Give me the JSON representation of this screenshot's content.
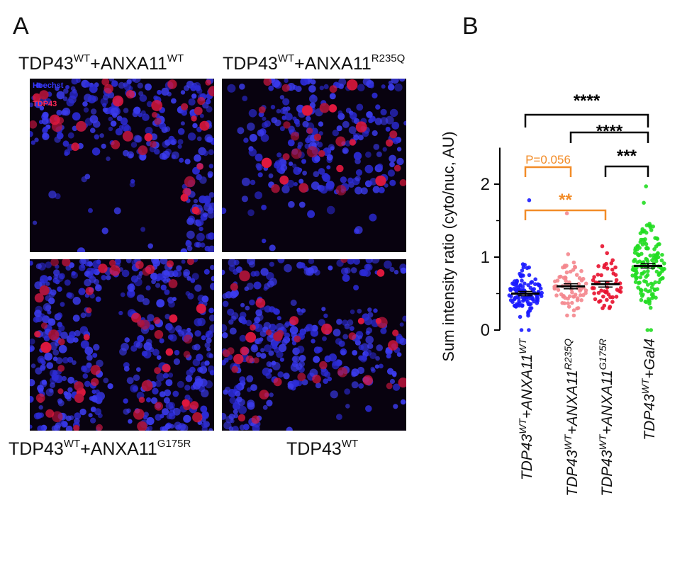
{
  "panel_a": {
    "letter": "A",
    "legend": {
      "hoechst": "Hoechst",
      "tdp43": "TDP43",
      "hoechst_color": "#2a2cff",
      "tdp43_color": "#ff1f4a"
    },
    "captions": [
      {
        "base": "TDP43",
        "sup1": "WT",
        "mid": "+ANXA11",
        "sup2": "WT"
      },
      {
        "base": "TDP43",
        "sup1": "WT",
        "mid": "+ANXA11",
        "sup2": "R235Q"
      },
      {
        "base": "TDP43",
        "sup1": "WT",
        "mid": "+ANXA11",
        "sup2": "G175R"
      },
      {
        "base": "TDP43",
        "sup1": "WT",
        "mid": "",
        "sup2": ""
      }
    ]
  },
  "panel_b": {
    "letter": "B"
  },
  "chart_data": {
    "type": "scatter",
    "ylabel": "Sum intensity ratio (cyto/nuc, AU)",
    "ylim": [
      0,
      2.5
    ],
    "yticks": [
      0,
      1,
      2
    ],
    "groups": [
      {
        "label_base": "TDP43",
        "label_sup1": "WT",
        "label_mid": "+ANXA11",
        "label_sup2": "WT",
        "mean": 0.5,
        "sem": 0.03,
        "color": "#1a1aff",
        "n": 120,
        "max": 1.78,
        "min": 0.0
      },
      {
        "label_base": "TDP43",
        "label_sup1": "WT",
        "label_mid": "+ANXA11",
        "label_sup2": "R235Q",
        "mean": 0.6,
        "sem": 0.035,
        "color": "#f4868d",
        "n": 70,
        "max": 1.6,
        "min": 0.2
      },
      {
        "label_base": "TDP43",
        "label_sup1": "WT",
        "label_mid": "+ANXA11",
        "label_sup2": "G175R",
        "mean": 0.63,
        "sem": 0.04,
        "color": "#e8112d",
        "n": 50,
        "max": 1.15,
        "min": 0.3
      },
      {
        "label_base": "TDP43",
        "label_sup1": "WT",
        "label_mid": "+Gal4",
        "label_sup2": "",
        "mean": 0.88,
        "sem": 0.03,
        "color": "#22dd22",
        "n": 150,
        "max": 1.97,
        "min": 0.0
      }
    ],
    "significance": [
      {
        "from": 0,
        "to": 3,
        "label": "****",
        "color": "#000000"
      },
      {
        "from": 1,
        "to": 3,
        "label": "****",
        "color": "#000000"
      },
      {
        "from": 2,
        "to": 3,
        "label": "***",
        "color": "#000000"
      },
      {
        "from": 0,
        "to": 1,
        "label": "P=0.056",
        "color": "#f28c28"
      },
      {
        "from": 0,
        "to": 2,
        "label": "**",
        "color": "#f28c28"
      }
    ]
  }
}
